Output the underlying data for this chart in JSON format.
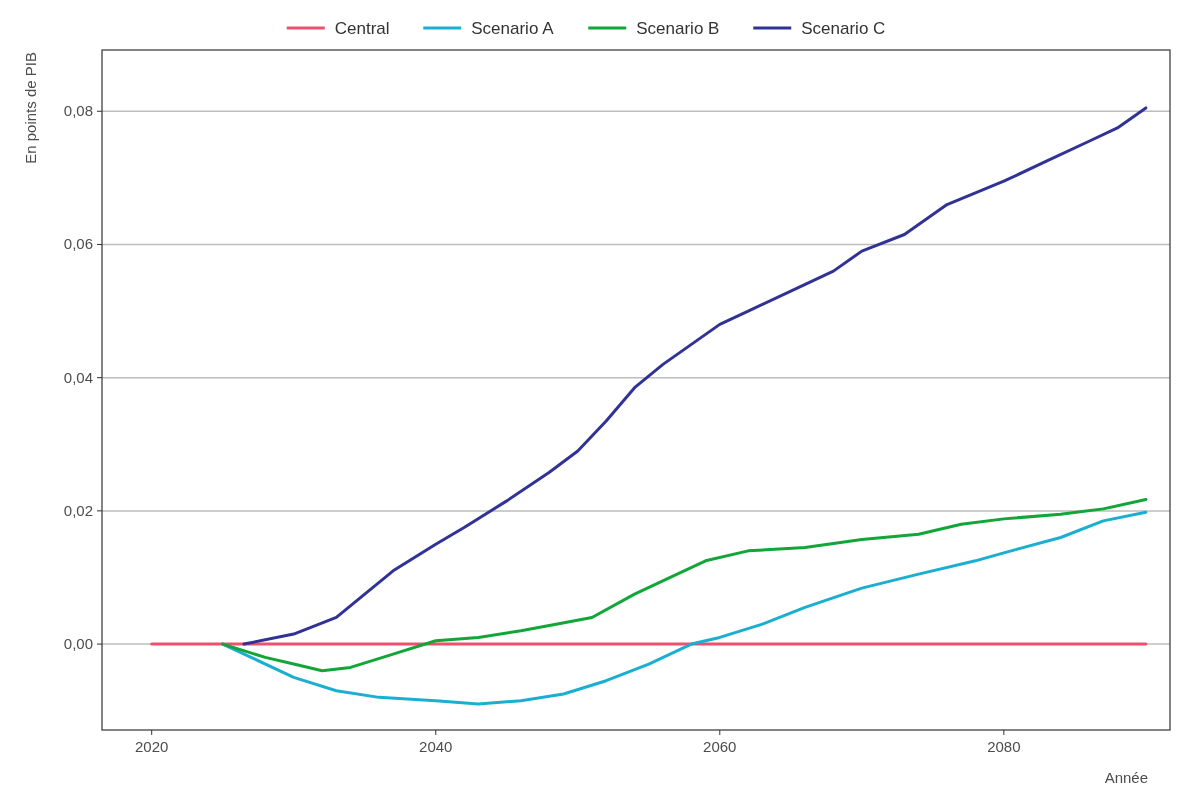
{
  "chart_data": {
    "type": "line",
    "xlabel": "Année",
    "ylabel": "En points de PIB",
    "legend": "top",
    "grid": "y",
    "line_style": "solid",
    "xlim": [
      2016.5,
      2091.7
    ],
    "xticks": [
      2020,
      2040,
      2060,
      2080
    ],
    "ylim": [
      -0.0129,
      0.0892
    ],
    "yticks": [
      {
        "value": 0,
        "label": "0,00"
      },
      {
        "value": 0.02,
        "label": "0,02"
      },
      {
        "value": 0.04,
        "label": "0,04"
      },
      {
        "value": 0.06,
        "label": "0,06"
      },
      {
        "value": 0.08,
        "label": "0,08"
      }
    ],
    "series": [
      {
        "name": "Central",
        "color": "#f0506e",
        "x": [
          2020,
          2090
        ],
        "values": [
          0,
          0
        ]
      },
      {
        "name": "Scenario A",
        "color": "#1aafd0",
        "x": [
          2025,
          2027,
          2030,
          2033,
          2036,
          2040,
          2043,
          2046,
          2049,
          2052,
          2055,
          2058,
          2060,
          2063,
          2066,
          2070,
          2074,
          2078,
          2080,
          2084,
          2087,
          2090
        ],
        "values": [
          0,
          -0.002,
          -0.005,
          -0.007,
          -0.008,
          -0.0085,
          -0.009,
          -0.0085,
          -0.0075,
          -0.0055,
          -0.003,
          0,
          0.001,
          0.003,
          0.0055,
          0.0084,
          0.0105,
          0.0125,
          0.0137,
          0.016,
          0.0185,
          0.0198
        ]
      },
      {
        "name": "Scenario B",
        "color": "#12a538",
        "x": [
          2025,
          2028,
          2030,
          2032,
          2034,
          2037,
          2040,
          2043,
          2046,
          2048,
          2051,
          2054,
          2057,
          2059,
          2062,
          2066,
          2070,
          2074,
          2077,
          2080,
          2084,
          2087,
          2090
        ],
        "values": [
          0,
          -0.002,
          -0.003,
          -0.004,
          -0.0035,
          -0.0015,
          0.0005,
          0.001,
          0.002,
          0.0028,
          0.004,
          0.0075,
          0.0105,
          0.0125,
          0.014,
          0.0145,
          0.0157,
          0.0165,
          0.018,
          0.0188,
          0.0195,
          0.0203,
          0.0217
        ]
      },
      {
        "name": "Scenario C",
        "color": "#303395",
        "x": [
          2026.5,
          2030,
          2033,
          2035,
          2037,
          2040,
          2042,
          2045,
          2048,
          2050,
          2052,
          2054,
          2056,
          2060,
          2062,
          2065,
          2068,
          2070,
          2073,
          2076,
          2080,
          2083,
          2086,
          2088,
          2090
        ],
        "values": [
          0,
          0.0015,
          0.004,
          0.0075,
          0.011,
          0.015,
          0.0175,
          0.0215,
          0.0258,
          0.029,
          0.0335,
          0.0385,
          0.042,
          0.048,
          0.05,
          0.053,
          0.056,
          0.059,
          0.0615,
          0.066,
          0.0695,
          0.0725,
          0.0755,
          0.0775,
          0.0805
        ]
      }
    ]
  }
}
